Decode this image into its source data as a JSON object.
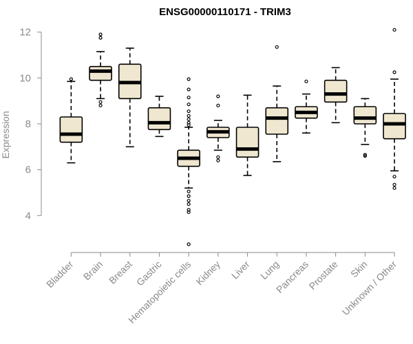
{
  "chart_data": {
    "type": "boxplot",
    "title": "ENSG00000110171 - TRIM3",
    "xlabel": "",
    "ylabel": "Expression",
    "ylim": [
      2.6,
      12.5
    ],
    "yticks": [
      4,
      6,
      8,
      10,
      12
    ],
    "box_color": "#efe7d0",
    "series": [
      {
        "name": "Bladder",
        "whisker_low": 6.3,
        "q1": 7.2,
        "median": 7.55,
        "q3": 8.3,
        "whisker_high": 9.85,
        "outliers": [
          9.95
        ]
      },
      {
        "name": "Brain",
        "whisker_low": 9.1,
        "q1": 9.9,
        "median": 10.3,
        "q3": 10.5,
        "whisker_high": 11.15,
        "outliers": [
          11.75,
          11.9,
          8.8,
          8.95
        ]
      },
      {
        "name": "Breast",
        "whisker_low": 7.0,
        "q1": 9.1,
        "median": 9.8,
        "q3": 10.6,
        "whisker_high": 11.3,
        "outliers": []
      },
      {
        "name": "Gastric",
        "whisker_low": 7.45,
        "q1": 7.75,
        "median": 8.05,
        "q3": 8.7,
        "whisker_high": 9.2,
        "outliers": []
      },
      {
        "name": "Hematopoietic cells",
        "whisker_low": 5.2,
        "q1": 6.15,
        "median": 6.5,
        "q3": 6.85,
        "whisker_high": 7.85,
        "outliers": [
          9.95,
          9.5,
          9.15,
          8.85,
          8.55,
          8.35,
          8.2,
          8.05,
          7.95,
          5.05,
          4.85,
          4.65,
          4.5,
          4.25,
          4.15,
          2.75
        ]
      },
      {
        "name": "Kidney",
        "whisker_low": 6.85,
        "q1": 7.4,
        "median": 7.65,
        "q3": 7.85,
        "whisker_high": 8.15,
        "outliers": [
          9.2,
          8.8,
          6.55,
          6.4
        ]
      },
      {
        "name": "Liver",
        "whisker_low": 5.75,
        "q1": 6.55,
        "median": 6.9,
        "q3": 7.85,
        "whisker_high": 9.25,
        "outliers": []
      },
      {
        "name": "Lung",
        "whisker_low": 6.35,
        "q1": 7.55,
        "median": 8.25,
        "q3": 8.7,
        "whisker_high": 9.65,
        "outliers": [
          11.35
        ]
      },
      {
        "name": "Pancreas",
        "whisker_low": 7.6,
        "q1": 8.25,
        "median": 8.5,
        "q3": 8.75,
        "whisker_high": 9.3,
        "outliers": [
          9.85
        ]
      },
      {
        "name": "Prostate",
        "whisker_low": 8.05,
        "q1": 8.95,
        "median": 9.3,
        "q3": 9.9,
        "whisker_high": 10.45,
        "outliers": []
      },
      {
        "name": "Skin",
        "whisker_low": 7.1,
        "q1": 8.0,
        "median": 8.25,
        "q3": 8.75,
        "whisker_high": 9.1,
        "outliers": [
          6.65,
          6.6
        ]
      },
      {
        "name": "Unknown / Other",
        "whisker_low": 5.95,
        "q1": 7.35,
        "median": 8.0,
        "q3": 8.45,
        "whisker_high": 9.95,
        "outliers": [
          12.1,
          10.25,
          5.7,
          5.35,
          5.2
        ]
      }
    ]
  }
}
